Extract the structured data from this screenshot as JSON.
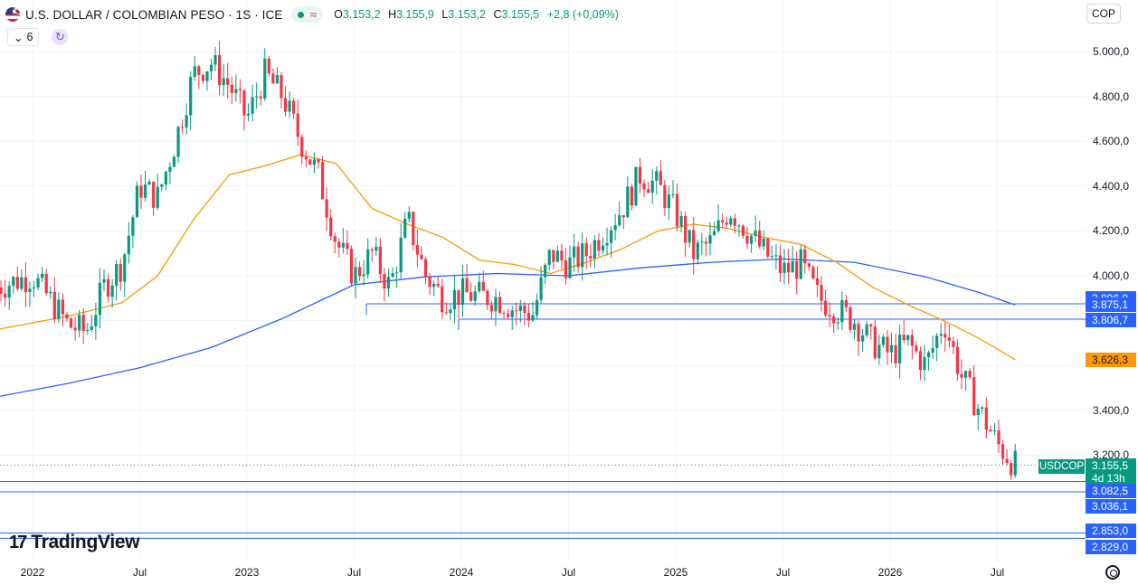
{
  "header": {
    "title": "U.S. DOLLAR / COLOMBIAN PESO · 1S · ICE",
    "ohlc": [
      {
        "label": "O",
        "value": "3.153,2"
      },
      {
        "label": "H",
        "value": "3.155,9"
      },
      {
        "label": "L",
        "value": "3.153,2"
      },
      {
        "label": "C",
        "value": "3.155,5"
      }
    ],
    "change": "+2,8 (+0,09%)",
    "indicator_count": "6",
    "currency": "COP"
  },
  "watermark": "TradingView",
  "chart_data": {
    "type": "candlestick",
    "symbol": "USDCOP",
    "x_labels": [
      "2022",
      "Jul",
      "2023",
      "Jul",
      "2024",
      "Jul",
      "2025",
      "Jul",
      "2026",
      "Jul"
    ],
    "y_ticks": [
      "5.000,0",
      "4.800,0",
      "4.600,0",
      "4.400,0",
      "4.200,0",
      "4.000,0",
      "3.400,0",
      "3.200,0"
    ],
    "y_tick_values": [
      5000,
      4800,
      4600,
      4400,
      4200,
      4000,
      3400,
      3200
    ],
    "ylim": [
      2720,
      5230
    ],
    "last_price": {
      "symbol": "USDCOP",
      "value": "3.155,5",
      "countdown": "4d 13h",
      "num": 3155.5,
      "color": "#089981"
    },
    "price_labels": [
      {
        "value": "3.896,9",
        "num": 3896.9,
        "color": "#2962ff",
        "line": false
      },
      {
        "value": "3.875,1",
        "num": 3875.1,
        "color": "#2962ff",
        "line": true
      },
      {
        "value": "3.806,7",
        "num": 3806.7,
        "color": "#2962ff",
        "line": true
      },
      {
        "value": "3.626,3",
        "num": 3626.3,
        "color": "#ff9800",
        "line": false
      },
      {
        "value": "3.082,5",
        "num": 3082.5,
        "color": "#2962ff",
        "line": true
      },
      {
        "value": "3.036,1",
        "num": 3036.1,
        "color": "#2962ff",
        "line": true
      },
      {
        "value": "2.853,0",
        "num": 2853.0,
        "color": "#2962ff",
        "line": true
      },
      {
        "value": "2.829,0",
        "num": 2829.0,
        "color": "#2962ff",
        "line": true
      }
    ],
    "colors": {
      "up": "#089981",
      "down": "#f23645",
      "ma_fast": "#ff9800",
      "ma_slow": "#2962ff",
      "grid": "#f0f3fa",
      "hline": "#2962ff"
    },
    "close_path": [
      [
        "2021-11",
        3950
      ],
      [
        "2022-01",
        4000
      ],
      [
        "2022-03",
        3780
      ],
      [
        "2022-04",
        3750
      ],
      [
        "2022-05",
        3950
      ],
      [
        "2022-06",
        4050
      ],
      [
        "2022-07",
        4400
      ],
      [
        "2022-08",
        4350
      ],
      [
        "2022-09",
        4600
      ],
      [
        "2022-10",
        4900
      ],
      [
        "2022-11",
        4950
      ],
      [
        "2022-12",
        4850
      ],
      [
        "2023-01",
        4700
      ],
      [
        "2023-02",
        4900
      ],
      [
        "2023-03",
        4800
      ],
      [
        "2023-04",
        4600
      ],
      [
        "2023-05",
        4450
      ],
      [
        "2023-06",
        4150
      ],
      [
        "2023-07",
        4000
      ],
      [
        "2023-08",
        4100
      ],
      [
        "2023-09",
        3950
      ],
      [
        "2023-10",
        4250
      ],
      [
        "2023-11",
        4000
      ],
      [
        "2023-12",
        3900
      ],
      [
        "2024-01",
        3920
      ],
      [
        "2024-03",
        3900
      ],
      [
        "2024-04",
        3850
      ],
      [
        "2024-05",
        3830
      ],
      [
        "2024-06",
        4100
      ],
      [
        "2024-07",
        4050
      ],
      [
        "2024-08",
        4100
      ],
      [
        "2024-09",
        4200
      ],
      [
        "2024-10",
        4300
      ],
      [
        "2024-11",
        4450
      ],
      [
        "2024-12",
        4400
      ],
      [
        "2025-01",
        4280
      ],
      [
        "2025-02",
        4100
      ],
      [
        "2025-03",
        4150
      ],
      [
        "2025-04",
        4300
      ],
      [
        "2025-05",
        4200
      ],
      [
        "2025-06",
        4100
      ],
      [
        "2025-07",
        4020
      ],
      [
        "2025-08",
        4050
      ],
      [
        "2025-09",
        3900
      ],
      [
        "2025-10",
        3850
      ],
      [
        "2025-11",
        3800
      ],
      [
        "2025-12",
        3700
      ],
      [
        "2026-01",
        3650
      ],
      [
        "2026-02",
        3700
      ],
      [
        "2026-03",
        3600
      ],
      [
        "2026-04",
        3800
      ],
      [
        "2026-05",
        3550
      ],
      [
        "2026-06",
        3400
      ],
      [
        "2026-07",
        3250
      ],
      [
        "2026-08",
        3155
      ]
    ],
    "ma_fast_path": [
      [
        "2021-11",
        3760
      ],
      [
        "2022-03",
        3820
      ],
      [
        "2022-06",
        3880
      ],
      [
        "2022-08",
        4000
      ],
      [
        "2022-10",
        4250
      ],
      [
        "2022-12",
        4450
      ],
      [
        "2023-02",
        4490
      ],
      [
        "2023-04",
        4540
      ],
      [
        "2023-06",
        4500
      ],
      [
        "2023-08",
        4300
      ],
      [
        "2023-10",
        4230
      ],
      [
        "2023-12",
        4170
      ],
      [
        "2024-02",
        4070
      ],
      [
        "2024-04",
        4050
      ],
      [
        "2024-06",
        4010
      ],
      [
        "2024-08",
        4060
      ],
      [
        "2024-10",
        4120
      ],
      [
        "2024-12",
        4200
      ],
      [
        "2025-02",
        4230
      ],
      [
        "2025-04",
        4210
      ],
      [
        "2025-06",
        4170
      ],
      [
        "2025-08",
        4140
      ],
      [
        "2025-10",
        4060
      ],
      [
        "2025-12",
        3950
      ],
      [
        "2026-02",
        3870
      ],
      [
        "2026-04",
        3800
      ],
      [
        "2026-06",
        3720
      ],
      [
        "2026-08",
        3626
      ]
    ],
    "ma_slow_path": [
      [
        "2021-11",
        3460
      ],
      [
        "2022-03",
        3520
      ],
      [
        "2022-07",
        3590
      ],
      [
        "2022-11",
        3680
      ],
      [
        "2023-03",
        3810
      ],
      [
        "2023-07",
        3960
      ],
      [
        "2023-11",
        3995
      ],
      [
        "2024-03",
        4010
      ],
      [
        "2024-07",
        4000
      ],
      [
        "2024-11",
        4035
      ],
      [
        "2025-03",
        4060
      ],
      [
        "2025-07",
        4075
      ],
      [
        "2025-11",
        4060
      ],
      [
        "2026-03",
        3995
      ],
      [
        "2026-06",
        3925
      ],
      [
        "2026-08",
        3870
      ]
    ]
  }
}
